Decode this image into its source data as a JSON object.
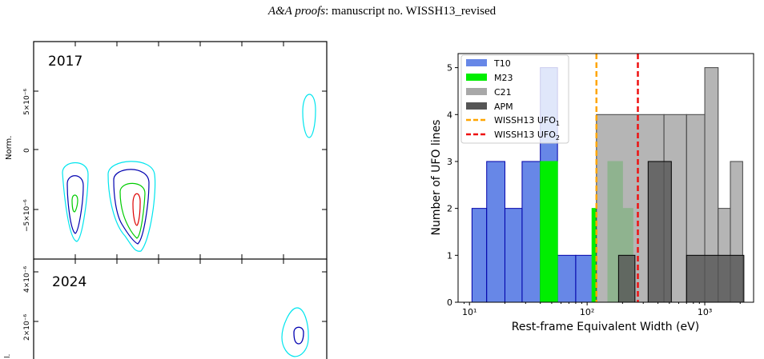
{
  "header": {
    "journal_italic": "A&A proofs",
    "manuscript": ": manuscript no. WISSH13_revised"
  },
  "contour_figure": {
    "panels": [
      {
        "label": "2017",
        "ylabel": "Norm.",
        "yticks": [
          "5×10⁻⁶",
          "0",
          "−5×10⁻⁶"
        ]
      },
      {
        "label": "2024",
        "ylabel": "l.",
        "yticks": [
          "4×10⁻⁶",
          "2×10⁻⁶"
        ]
      }
    ],
    "colors": {
      "outer": "#00e5ee",
      "mid": "#0000b0",
      "inner": "#00cc00",
      "core": "#dd0000"
    }
  },
  "chart_data": {
    "type": "bar",
    "xlabel": "Rest-frame Equivalent Width (eV)",
    "ylabel": "Number of UFO lines",
    "xscale": "log",
    "xlim": [
      8,
      2600
    ],
    "ylim": [
      0,
      5.3
    ],
    "xticks": [
      "10¹",
      "10²",
      "10³"
    ],
    "yticks": [
      "0",
      "1",
      "2",
      "3",
      "4",
      "5"
    ],
    "legend_position": "top-left",
    "series": [
      {
        "name": "T10",
        "color": "#4169e1",
        "alpha": 0.8,
        "edge": "#0000aa",
        "edges": [
          10.5,
          14,
          20,
          28,
          40,
          56,
          80,
          112,
          160,
          224,
          260
        ],
        "counts": [
          2,
          3,
          2,
          3,
          5,
          1,
          1,
          0,
          1,
          0
        ]
      },
      {
        "name": "M23",
        "color": "#00ee00",
        "alpha": 1.0,
        "edge": "#00ee00",
        "edges": [
          40,
          56,
          80,
          110,
          120,
          150,
          200,
          245
        ],
        "counts": [
          3,
          0,
          0,
          2,
          0,
          3,
          2
        ]
      },
      {
        "name": "C21",
        "color": "#a8a8a8",
        "alpha": 0.85,
        "edge": "#444444",
        "edges": [
          120,
          450,
          700,
          1000,
          1300,
          1650,
          2100
        ],
        "counts": [
          4,
          4,
          4,
          5,
          2,
          3
        ]
      },
      {
        "name": "APM",
        "color": "#555555",
        "alpha": 0.8,
        "edge": "#000000",
        "edges": [
          185,
          255,
          330,
          520,
          700,
          2150
        ],
        "counts": [
          1,
          0,
          3,
          0,
          1
        ]
      }
    ],
    "vlines": [
      {
        "name": "WISSH13 UFO",
        "sub": "1",
        "x": 120,
        "color": "#ffa500"
      },
      {
        "name": "WISSH13 UFO",
        "sub": "2",
        "x": 270,
        "color": "#ee1111"
      }
    ]
  }
}
